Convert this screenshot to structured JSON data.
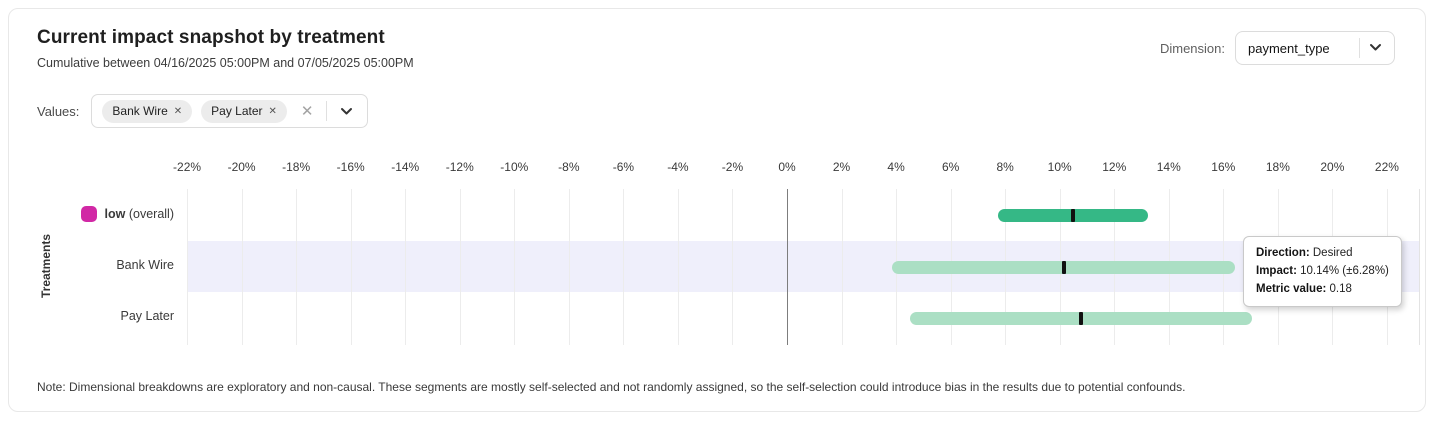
{
  "header": {
    "title": "Current impact snapshot by treatment",
    "subtitle": "Cumulative between 04/16/2025 05:00PM and 07/05/2025 05:00PM",
    "dimension": {
      "label": "Dimension:",
      "selected_value": "payment_type"
    }
  },
  "filters": {
    "label": "Values:",
    "chips": [
      {
        "label": "Bank Wire"
      },
      {
        "label": "Pay Later"
      }
    ],
    "remove_glyph": "✕",
    "clear_glyph": "✕",
    "icons": {
      "chip_remove": "x-icon",
      "clear_all": "x-icon",
      "expand": "chevron-down-icon",
      "dimension_expand": "chevron-down-icon"
    }
  },
  "chart_data": {
    "type": "bar",
    "orientation": "horizontal-interval",
    "title": "",
    "xlabel": "",
    "ylabel": "Treatments",
    "x_unit": "percent",
    "xlim": [
      -22,
      22
    ],
    "x_tick_step": 2,
    "x_ticks": [
      -22,
      -20,
      -18,
      -16,
      -14,
      -12,
      -10,
      -8,
      -6,
      -4,
      -2,
      0,
      2,
      4,
      6,
      8,
      10,
      12,
      14,
      16,
      18,
      20,
      22
    ],
    "x_tick_labels": [
      "-22%",
      "-20%",
      "-18%",
      "-16%",
      "-14%",
      "-12%",
      "-10%",
      "-8%",
      "-6%",
      "-4%",
      "-2%",
      "0%",
      "2%",
      "4%",
      "6%",
      "8%",
      "10%",
      "12%",
      "14%",
      "16%",
      "18%",
      "20%",
      "22%"
    ],
    "grid": true,
    "zero_line": true,
    "legend_position": "row-label",
    "colors": {
      "overall_bar": "#35b886",
      "segment_bar": "#abdfc4",
      "point_tick": "#111111",
      "legend_swatch": "#d128a5",
      "row_highlight": "#efeffb",
      "gridline": "#ececec",
      "zero_line": "#7d7d7d"
    },
    "rows": [
      {
        "label": "low",
        "suffix": "(overall)",
        "swatch": true,
        "impact_pct": 10.49,
        "ci_pct": 2.75,
        "bar_color_key": "overall_bar",
        "highlighted": false
      },
      {
        "label": "Bank Wire",
        "suffix": "",
        "swatch": false,
        "impact_pct": 10.14,
        "ci_pct": 6.28,
        "bar_color_key": "segment_bar",
        "highlighted": true
      },
      {
        "label": "Pay Later",
        "suffix": "",
        "swatch": false,
        "impact_pct": 10.78,
        "ci_pct": 6.27,
        "bar_color_key": "segment_bar",
        "highlighted": false
      }
    ]
  },
  "tooltip": {
    "rows": [
      {
        "label": "Direction:",
        "value": "Desired"
      },
      {
        "label": "Impact:",
        "value": "10.14% (±6.28%)"
      },
      {
        "label": "Metric value:",
        "value": "0.18"
      }
    ]
  },
  "note": "Note: Dimensional breakdowns are exploratory and non-causal. These segments are mostly self-selected and not randomly assigned, so the self-selection could introduce bias in the results due to potential confounds."
}
